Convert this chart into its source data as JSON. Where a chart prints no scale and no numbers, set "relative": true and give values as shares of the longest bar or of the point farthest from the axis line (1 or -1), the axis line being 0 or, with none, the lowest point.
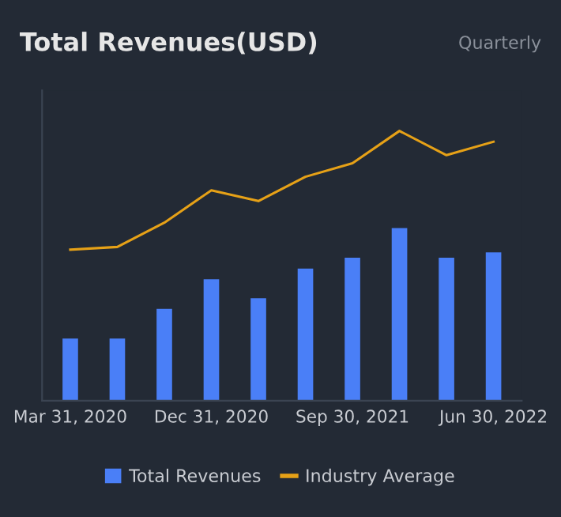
{
  "chart_data": {
    "type": "bar",
    "title": "Total Revenues(USD)",
    "subtitle": "Quarterly",
    "relative": true,
    "categories": [
      "Mar 31, 2020",
      null,
      null,
      "Dec 31, 2020",
      null,
      null,
      "Sep 30, 2021",
      null,
      null,
      "Jun 30, 2022"
    ],
    "series": [
      {
        "name": "Total Revenues",
        "color": "#4a7ff7",
        "values": [
          0.23,
          0.23,
          0.34,
          0.45,
          0.38,
          0.49,
          0.53,
          0.64,
          0.53,
          0.55
        ]
      },
      {
        "name": "Industry Average",
        "type": "line",
        "color": "#e6a117",
        "values": [
          0.56,
          0.57,
          0.66,
          0.78,
          0.74,
          0.83,
          0.88,
          1,
          0.91,
          0.96
        ]
      }
    ],
    "legend": "bottom",
    "grid": false
  }
}
